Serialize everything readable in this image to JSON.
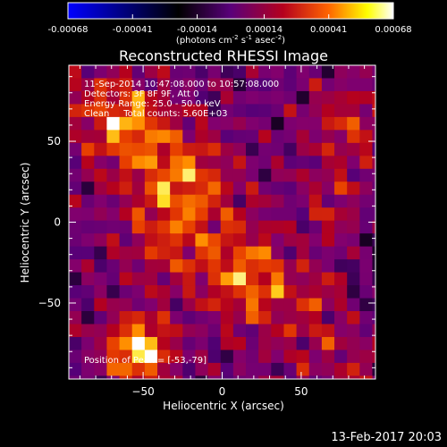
{
  "chart_data": {
    "type": "heatmap",
    "title": "Reconstructed RHESSI Image",
    "colorbar": {
      "ticks": [
        -0.00068,
        -0.00041,
        -0.00014,
        0.00014,
        0.00041,
        0.00068
      ],
      "tick_labels": [
        "-0.00068",
        "-0.00041",
        "-0.00014",
        "0.00014",
        "0.00041",
        "0.00068"
      ],
      "unit_label": "(photons cm",
      "unit_sup1": "-2",
      "unit_mid": " s",
      "unit_sup2": "-1",
      "unit_mid2": " asec",
      "unit_sup3": "-2",
      "unit_end": ")",
      "range": [
        -0.00068,
        0.00068
      ],
      "colors": [
        "#0000ff",
        "#000000",
        "#5a007a",
        "#b4001e",
        "#ff6400",
        "#ffff00",
        "#ffffff"
      ]
    },
    "xlabel": "Heliocentric X (arcsec)",
    "ylabel": "Heliocentric Y (arcsec)",
    "xlim": [
      -97,
      97
    ],
    "ylim": [
      -97,
      97
    ],
    "xticks": [
      -50,
      0,
      50
    ],
    "yticks": [
      -50,
      0,
      50
    ],
    "xtick_labels": [
      "−50",
      "0",
      "50"
    ],
    "ytick_labels": [
      "−50",
      "0",
      "50"
    ],
    "annotations": [
      "11-Sep-2014 10:47:08.000 to 10:57:08.000",
      "Detectors: 3F 8F 9F, Att 0",
      "Energy Range: 25.0 - 50.0 keV",
      "Clean     Total counts: 5.60E+03"
    ],
    "peak_label": "Position of Peak = [-53,-79]",
    "peak": [
      -53,
      -79
    ]
  },
  "footer": {
    "date": "13-Feb-2017 20:03"
  }
}
